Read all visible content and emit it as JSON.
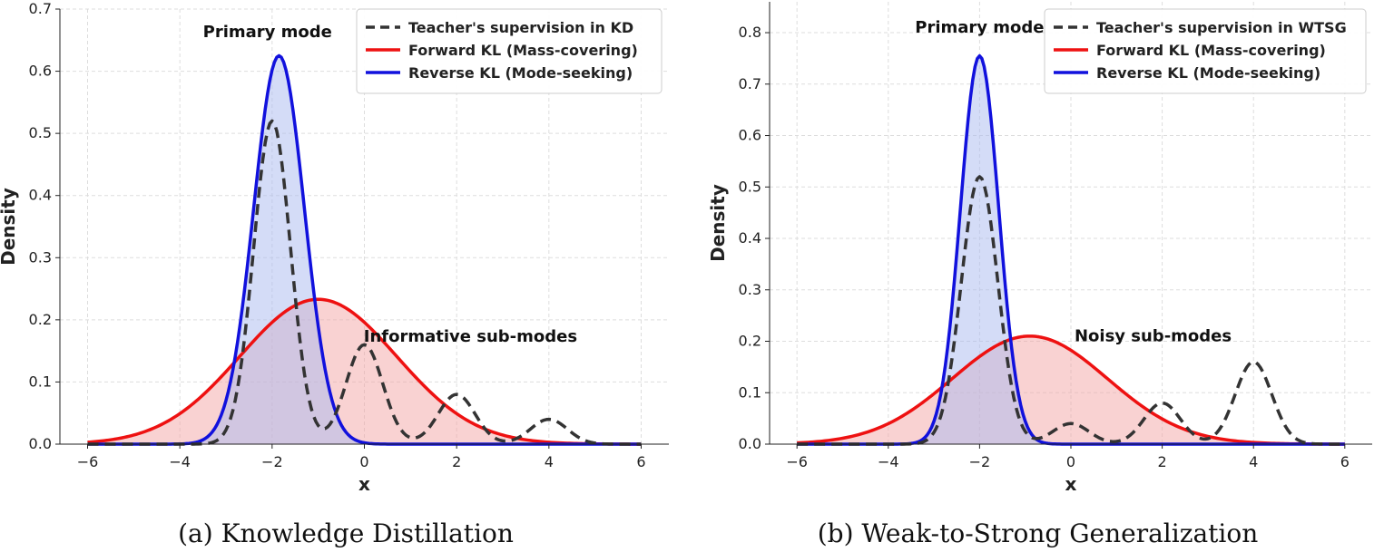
{
  "chart_data": [
    {
      "type": "line",
      "caption": "(a)  Knowledge Distillation",
      "xlabel": "x",
      "ylabel": "Density",
      "xlim": [
        -6.6,
        6.6
      ],
      "ylim": [
        0,
        0.7
      ],
      "xticks": [
        -6,
        -4,
        -2,
        0,
        2,
        4,
        6
      ],
      "yticks": [
        0.0,
        0.1,
        0.2,
        0.3,
        0.4,
        0.5,
        0.6,
        0.7
      ],
      "grid": true,
      "legend_position": "top-right",
      "annotations": [
        {
          "text": "Primary mode",
          "x": -2.1,
          "y": 0.655
        },
        {
          "text": "Informative sub-modes",
          "x": 2.3,
          "y": 0.165
        }
      ],
      "series": [
        {
          "name": "Teacher's supervision in KD",
          "style": "dashed",
          "color": "#333333",
          "fill": null,
          "components": [
            {
              "mean": -2.0,
              "sd": 0.4,
              "height": 0.52
            },
            {
              "mean": 0.0,
              "sd": 0.4,
              "height": 0.16
            },
            {
              "mean": 2.0,
              "sd": 0.4,
              "height": 0.08
            },
            {
              "mean": 4.0,
              "sd": 0.4,
              "height": 0.04
            }
          ]
        },
        {
          "name": "Forward KL (Mass-covering)",
          "style": "solid",
          "color": "#ee1111",
          "fill": "#f4a6a6",
          "components": [
            {
              "mean": -1.0,
              "sd": 1.7,
              "height": 0.233
            }
          ]
        },
        {
          "name": "Reverse KL (Mode-seeking)",
          "style": "solid",
          "color": "#1111dd",
          "fill": "#a9b9f0",
          "components": [
            {
              "mean": -1.85,
              "sd": 0.55,
              "height": 0.625
            }
          ]
        }
      ]
    },
    {
      "type": "line",
      "caption": "(b)  Weak-to-Strong Generalization",
      "xlabel": "x",
      "ylabel": "Density",
      "xlim": [
        -6.6,
        6.6
      ],
      "ylim": [
        0,
        0.86
      ],
      "xticks": [
        -6,
        -4,
        -2,
        0,
        2,
        4,
        6
      ],
      "yticks": [
        0.0,
        0.1,
        0.2,
        0.3,
        0.4,
        0.5,
        0.6,
        0.7,
        0.8
      ],
      "grid": true,
      "legend_position": "top-right",
      "annotations": [
        {
          "text": "Primary mode",
          "x": -2.0,
          "y": 0.8
        },
        {
          "text": "Noisy sub-modes",
          "x": 1.8,
          "y": 0.2
        }
      ],
      "series": [
        {
          "name": "Teacher's supervision in WTSG",
          "style": "dashed",
          "color": "#333333",
          "fill": null,
          "components": [
            {
              "mean": -2.0,
              "sd": 0.4,
              "height": 0.52
            },
            {
              "mean": 0.0,
              "sd": 0.4,
              "height": 0.04
            },
            {
              "mean": 2.0,
              "sd": 0.4,
              "height": 0.08
            },
            {
              "mean": 4.0,
              "sd": 0.4,
              "height": 0.16
            }
          ]
        },
        {
          "name": "Forward KL (Mass-covering)",
          "style": "solid",
          "color": "#ee1111",
          "fill": "#f4a6a6",
          "components": [
            {
              "mean": -0.9,
              "sd": 1.7,
              "height": 0.21
            }
          ]
        },
        {
          "name": "Reverse KL (Mode-seeking)",
          "style": "solid",
          "color": "#1111dd",
          "fill": "#a9b9f0",
          "components": [
            {
              "mean": -2.0,
              "sd": 0.42,
              "height": 0.755
            }
          ]
        }
      ]
    }
  ]
}
